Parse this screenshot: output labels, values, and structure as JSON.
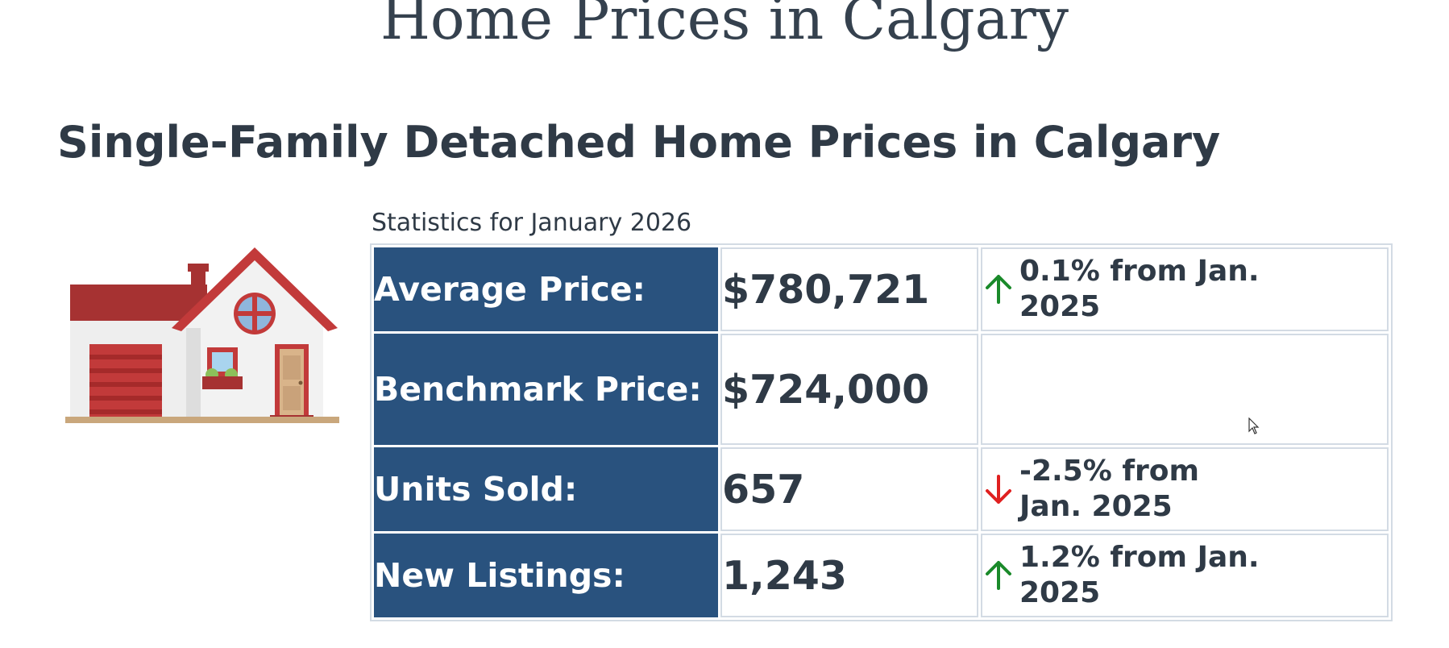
{
  "page": {
    "title": "Home Prices in Calgary"
  },
  "section": {
    "title": "Single-Family Detached Home Prices in Calgary",
    "caption": "Statistics for January 2026"
  },
  "house_icon": "house-illustration",
  "stats": [
    {
      "label": "Average Price:",
      "value": "$780,721",
      "change": "0.1% from Jan. 2025",
      "direction": "up",
      "arrow_icon": "arrow-up-icon",
      "arrow_color": "#1a8a2a"
    },
    {
      "label": "Benchmark Price:",
      "value": "$724,000",
      "change": "",
      "direction": "none"
    },
    {
      "label": "Units Sold:",
      "value": "657",
      "change": "-2.5% from Jan. 2025",
      "direction": "down",
      "arrow_icon": "arrow-down-icon",
      "arrow_color": "#e02020"
    },
    {
      "label": "New Listings:",
      "value": "1,243",
      "change": "1.2% from Jan. 2025",
      "direction": "up",
      "arrow_icon": "arrow-up-icon",
      "arrow_color": "#1a8a2a"
    }
  ],
  "colors": {
    "label_bg": "#29527e",
    "table_border": "#d3dbe4",
    "text": "#2f3a46"
  }
}
